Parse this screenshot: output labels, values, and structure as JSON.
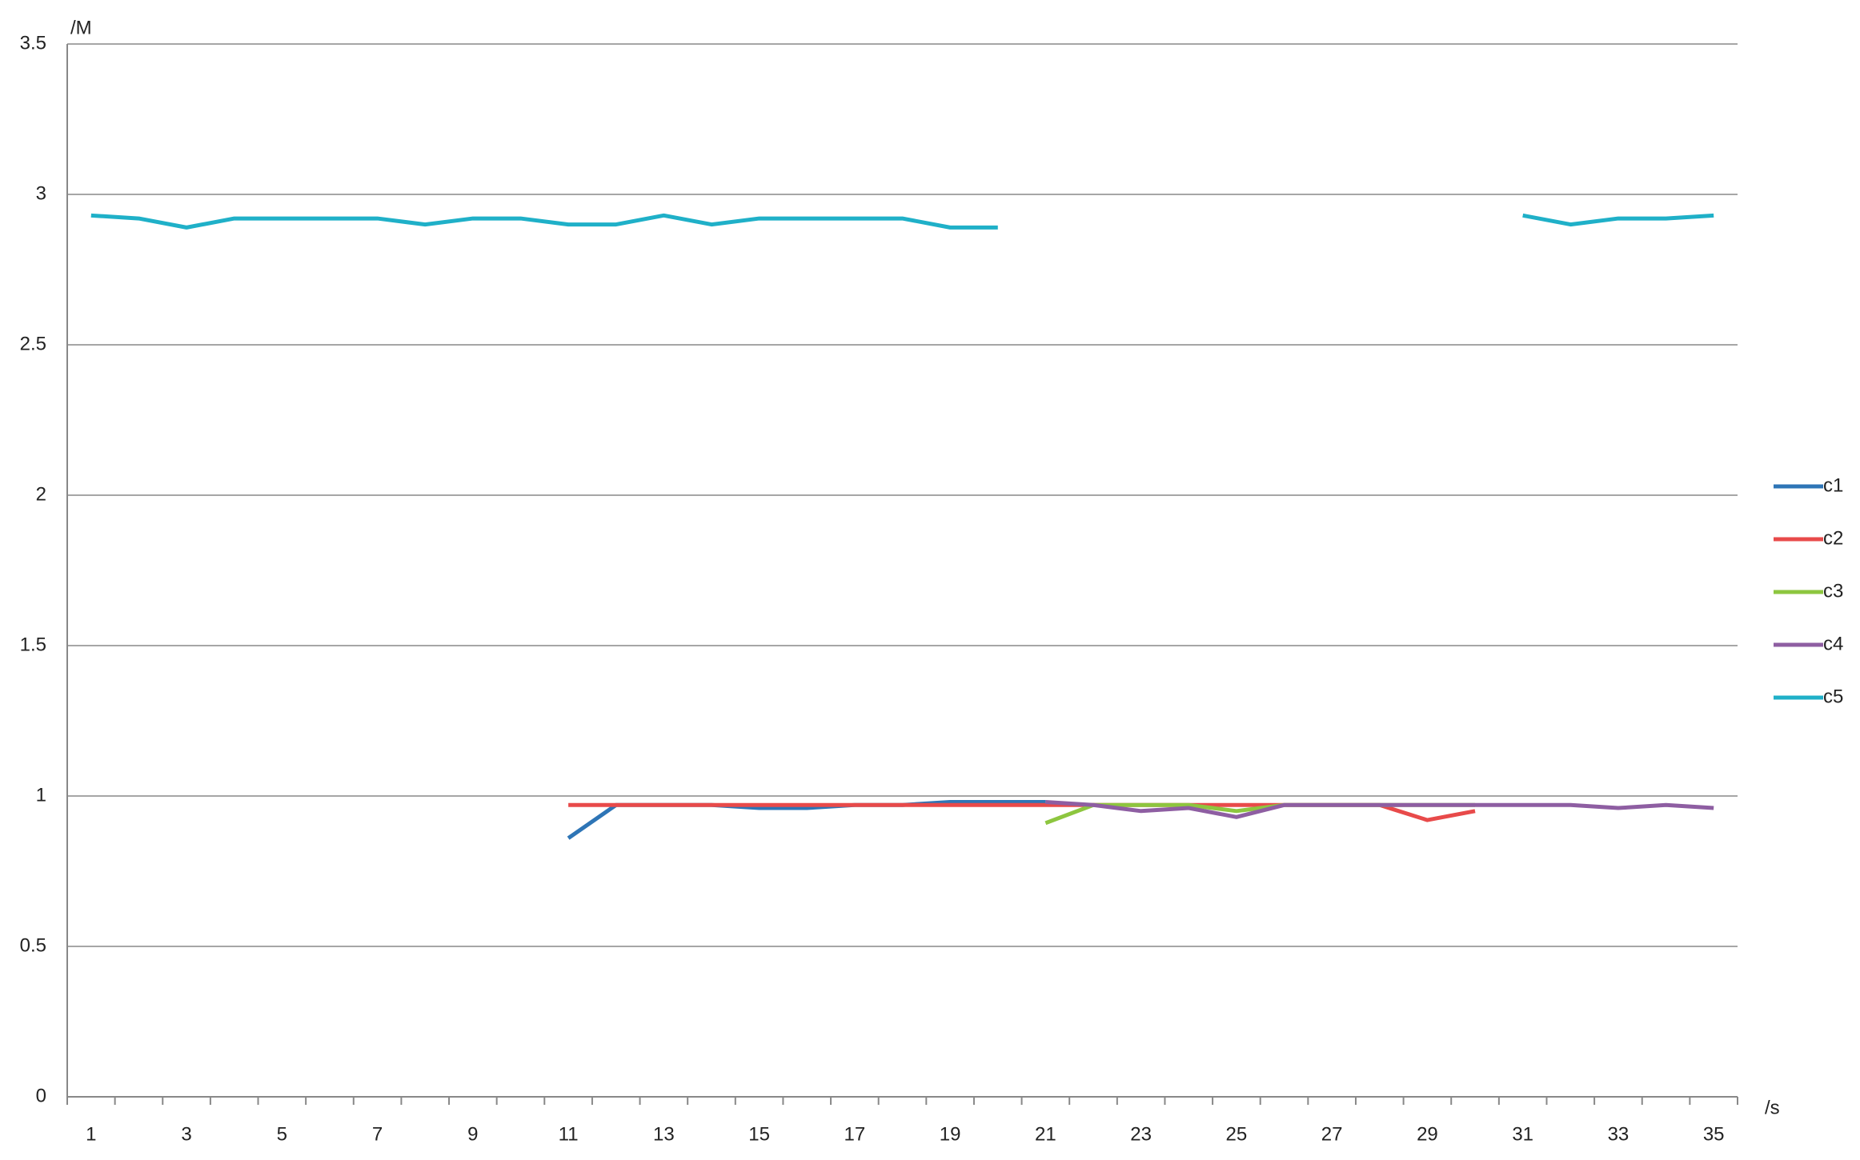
{
  "chart_data": {
    "type": "line",
    "y_label": "/M",
    "x_label": "/s",
    "categories": [
      "1",
      null,
      "3",
      null,
      "5",
      null,
      "7",
      null,
      "9",
      null,
      "11",
      null,
      "13",
      null,
      "15",
      null,
      "17",
      null,
      "19",
      null,
      "21",
      null,
      "23",
      null,
      "25",
      null,
      "27",
      null,
      "29",
      null,
      "31",
      null,
      "33",
      null,
      "35"
    ],
    "ylim": [
      0,
      3.5
    ],
    "yticks": [
      0,
      0.5,
      1,
      1.5,
      2,
      2.5,
      3,
      3.5
    ],
    "grid": true,
    "legend": "right",
    "series": [
      {
        "name": "c1",
        "color": "#2e75b6",
        "values": [
          null,
          null,
          null,
          null,
          null,
          null,
          null,
          null,
          null,
          null,
          0.86,
          0.97,
          0.97,
          0.97,
          0.96,
          0.96,
          0.97,
          0.97,
          0.98,
          0.98,
          0.98,
          null,
          null,
          null,
          null,
          null,
          null,
          null,
          null,
          null,
          null,
          null,
          null,
          null,
          null
        ]
      },
      {
        "name": "c2",
        "color": "#e84a4a",
        "values": [
          null,
          null,
          null,
          null,
          null,
          null,
          null,
          null,
          null,
          null,
          0.97,
          0.97,
          0.97,
          0.97,
          0.97,
          0.97,
          0.97,
          0.97,
          0.97,
          0.97,
          0.97,
          0.97,
          0.97,
          0.97,
          0.97,
          0.97,
          0.97,
          0.97,
          0.92,
          0.95,
          null,
          null,
          null,
          null,
          null
        ]
      },
      {
        "name": "c3",
        "color": "#8dc63f",
        "values": [
          null,
          null,
          null,
          null,
          null,
          null,
          null,
          null,
          null,
          null,
          null,
          null,
          null,
          null,
          null,
          null,
          null,
          null,
          null,
          null,
          0.91,
          0.97,
          0.97,
          0.97,
          0.95,
          0.97,
          0.97,
          0.97,
          0.97,
          0.97,
          null,
          null,
          null,
          null,
          null
        ]
      },
      {
        "name": "c4",
        "color": "#8e5ea2",
        "values": [
          null,
          null,
          null,
          null,
          null,
          null,
          null,
          null,
          null,
          null,
          null,
          null,
          null,
          null,
          null,
          null,
          null,
          null,
          null,
          null,
          0.98,
          0.97,
          0.95,
          0.96,
          0.93,
          0.97,
          0.97,
          0.97,
          0.97,
          0.97,
          0.97,
          0.97,
          0.96,
          0.97,
          0.96
        ]
      },
      {
        "name": "c5",
        "color": "#1fb0c8",
        "values": [
          2.93,
          2.92,
          2.89,
          2.92,
          2.92,
          2.92,
          2.92,
          2.9,
          2.92,
          2.92,
          2.9,
          2.9,
          2.93,
          2.9,
          2.92,
          2.92,
          2.92,
          2.92,
          2.89,
          2.89,
          null,
          null,
          null,
          null,
          null,
          null,
          null,
          null,
          null,
          null,
          2.93,
          2.9,
          2.92,
          2.92,
          2.93
        ]
      }
    ]
  }
}
